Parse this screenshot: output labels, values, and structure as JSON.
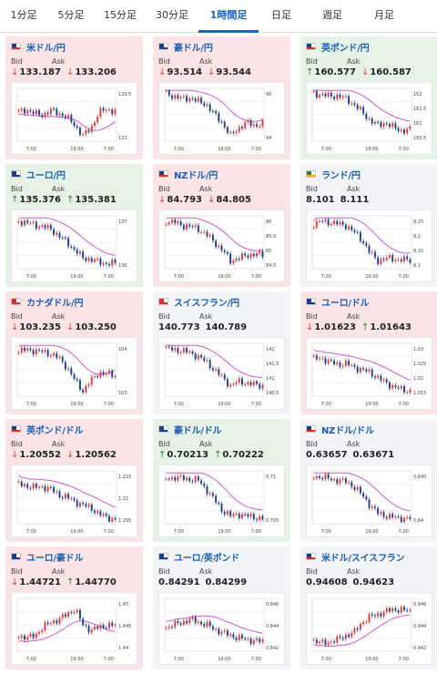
{
  "tabs": [
    {
      "label": "1分足",
      "active": false
    },
    {
      "label": "5分足",
      "active": false
    },
    {
      "label": "15分足",
      "active": false
    },
    {
      "label": "30分足",
      "active": false
    },
    {
      "label": "1時間足",
      "active": true
    },
    {
      "label": "日足",
      "active": false
    },
    {
      "label": "週足",
      "active": false
    },
    {
      "label": "月足",
      "active": false
    }
  ],
  "labels": {
    "bid": "Bid",
    "ask": "Ask"
  },
  "colors": {
    "accent": "#1565c0",
    "up_arrow": "#2e7d32",
    "down_arrow": "#e53935",
    "card_down_bg": "#fbe4e6",
    "card_up_bg": "#e6f2e6",
    "card_flat_bg": "#f2f4f7"
  },
  "cards": [
    {
      "pair": "米ドル/円",
      "flag": "us",
      "tone": "down",
      "bid": "133.187",
      "ask": "133.206",
      "bid_dir": "down",
      "ask_dir": "down",
      "chart_data": {
        "type": "candlestick",
        "x_ticks": [
          "7:00",
          "19:00",
          "7:00"
        ],
        "y_ticks": [
          "133.5",
          "133"
        ],
        "trend": [
          0.55,
          0.6,
          0.52,
          0.5,
          0.58,
          0.53,
          0.45,
          0.3,
          0.1,
          0.25,
          0.55,
          0.6,
          0.57
        ]
      }
    },
    {
      "pair": "豪ドル/円",
      "flag": "au",
      "tone": "down",
      "bid": "93.514",
      "ask": "93.544",
      "bid_dir": "down",
      "ask_dir": "down",
      "chart_data": {
        "type": "candlestick",
        "x_ticks": [
          "7:00",
          "19:00",
          "7:00"
        ],
        "y_ticks": [
          "95",
          "94"
        ],
        "trend": [
          0.9,
          0.85,
          0.8,
          0.82,
          0.75,
          0.7,
          0.5,
          0.35,
          0.1,
          0.25,
          0.35,
          0.3,
          0.33
        ]
      }
    },
    {
      "pair": "英ポンド/円",
      "flag": "gb",
      "tone": "up",
      "bid": "160.577",
      "ask": "160.587",
      "bid_dir": "up",
      "ask_dir": "down",
      "chart_data": {
        "type": "candlestick",
        "x_ticks": [
          "7:00",
          "19:00",
          "7:00"
        ],
        "y_ticks": [
          "162",
          "161.5",
          "161",
          "160.5"
        ],
        "trend": [
          0.9,
          0.88,
          0.85,
          0.86,
          0.8,
          0.7,
          0.55,
          0.4,
          0.3,
          0.35,
          0.25,
          0.2,
          0.22
        ]
      }
    },
    {
      "pair": "ユーロ/円",
      "flag": "eu",
      "tone": "up",
      "bid": "135.376",
      "ask": "135.381",
      "bid_dir": "up",
      "ask_dir": "up",
      "chart_data": {
        "type": "candlestick",
        "x_ticks": [
          "7:00",
          "19:00",
          "7:00"
        ],
        "y_ticks": [
          "137",
          "136"
        ],
        "trend": [
          0.9,
          0.87,
          0.83,
          0.8,
          0.75,
          0.62,
          0.5,
          0.35,
          0.2,
          0.18,
          0.12,
          0.1,
          0.1
        ]
      }
    },
    {
      "pair": "NZドル/円",
      "flag": "nz",
      "tone": "down",
      "bid": "84.793",
      "ask": "84.805",
      "bid_dir": "down",
      "ask_dir": "down",
      "chart_data": {
        "type": "candlestick",
        "x_ticks": [
          "7:00",
          "19:00",
          "7:00"
        ],
        "y_ticks": [
          "86",
          "85.5",
          "85",
          "84.5"
        ],
        "trend": [
          0.9,
          0.88,
          0.82,
          0.8,
          0.75,
          0.65,
          0.5,
          0.35,
          0.15,
          0.2,
          0.25,
          0.28,
          0.26
        ]
      }
    },
    {
      "pair": "ランド/円",
      "flag": "za",
      "tone": "flat",
      "bid": "8.101",
      "ask": "8.111",
      "bid_dir": "none",
      "ask_dir": "none",
      "chart_data": {
        "type": "candlestick",
        "x_ticks": [
          "7:00",
          "19:00",
          "7:00"
        ],
        "y_ticks": [
          "8.25",
          "8.2",
          "8.15",
          "8.1"
        ],
        "trend": [
          0.85,
          0.9,
          0.88,
          0.85,
          0.82,
          0.7,
          0.55,
          0.3,
          0.15,
          0.2,
          0.18,
          0.17,
          0.16
        ]
      }
    },
    {
      "pair": "カナダドル/円",
      "flag": "ca",
      "tone": "down",
      "bid": "103.235",
      "ask": "103.250",
      "bid_dir": "down",
      "ask_dir": "down",
      "chart_data": {
        "type": "candlestick",
        "x_ticks": [
          "7:00",
          "19:00",
          "7:00"
        ],
        "y_ticks": [
          "104",
          "103"
        ],
        "trend": [
          0.85,
          0.88,
          0.86,
          0.84,
          0.8,
          0.72,
          0.55,
          0.3,
          0.1,
          0.3,
          0.45,
          0.42,
          0.4
        ]
      }
    },
    {
      "pair": "スイスフラン/円",
      "flag": "ch",
      "tone": "flat",
      "bid": "140.773",
      "ask": "140.789",
      "bid_dir": "none",
      "ask_dir": "none",
      "chart_data": {
        "type": "candlestick",
        "x_ticks": [
          "7:00",
          "19:00",
          "7:00"
        ],
        "y_ticks": [
          "142",
          "141.5",
          "141",
          "140.5"
        ],
        "trend": [
          0.9,
          0.88,
          0.86,
          0.82,
          0.75,
          0.65,
          0.5,
          0.35,
          0.2,
          0.28,
          0.25,
          0.22,
          0.2
        ]
      }
    },
    {
      "pair": "ユーロ/ドル",
      "flag": "eu",
      "tone": "down",
      "bid": "1.01623",
      "ask": "1.01643",
      "bid_dir": "down",
      "ask_dir": "up",
      "chart_data": {
        "type": "candlestick",
        "x_ticks": [
          "7:00",
          "19:00",
          "7:00"
        ],
        "y_ticks": [
          "1.03",
          "1.025",
          "1.02",
          "1.015"
        ],
        "trend": [
          0.7,
          0.72,
          0.65,
          0.6,
          0.62,
          0.55,
          0.5,
          0.45,
          0.35,
          0.25,
          0.18,
          0.12,
          0.1
        ]
      }
    },
    {
      "pair": "英ポンド/ドル",
      "flag": "gb",
      "tone": "down",
      "bid": "1.20552",
      "ask": "1.20562",
      "bid_dir": "down",
      "ask_dir": "down",
      "chart_data": {
        "type": "candlestick",
        "x_ticks": [
          "7:00",
          "19:00",
          "7:00"
        ],
        "y_ticks": [
          "1.215",
          "1.21",
          "1.205"
        ],
        "trend": [
          0.75,
          0.72,
          0.68,
          0.7,
          0.65,
          0.55,
          0.5,
          0.42,
          0.35,
          0.3,
          0.18,
          0.12,
          0.08
        ]
      }
    },
    {
      "pair": "豪ドル/ドル",
      "flag": "au",
      "tone": "up",
      "bid": "0.70213",
      "ask": "0.70222",
      "bid_dir": "up",
      "ask_dir": "up",
      "chart_data": {
        "type": "candlestick",
        "x_ticks": [
          "7:00",
          "19:00",
          "7:00"
        ],
        "y_ticks": [
          "0.71",
          "0.705"
        ],
        "trend": [
          0.85,
          0.88,
          0.86,
          0.84,
          0.82,
          0.65,
          0.45,
          0.25,
          0.15,
          0.18,
          0.15,
          0.12,
          0.1
        ]
      }
    },
    {
      "pair": "NZドル/ドル",
      "flag": "nz",
      "tone": "flat",
      "bid": "0.63657",
      "ask": "0.63671",
      "bid_dir": "none",
      "ask_dir": "none",
      "chart_data": {
        "type": "candlestick",
        "x_ticks": [
          "7:00",
          "19:00",
          "7:00"
        ],
        "y_ticks": [
          "0.645",
          "0.64"
        ],
        "trend": [
          0.9,
          0.88,
          0.85,
          0.82,
          0.8,
          0.7,
          0.55,
          0.35,
          0.2,
          0.15,
          0.12,
          0.1,
          0.1
        ]
      }
    },
    {
      "pair": "ユーロ/豪ドル",
      "flag": "eu",
      "tone": "down",
      "bid": "1.44721",
      "ask": "1.44770",
      "bid_dir": "down",
      "ask_dir": "up",
      "chart_data": {
        "type": "candlestick",
        "x_ticks": [
          "7:00",
          "19:00",
          "7:00"
        ],
        "y_ticks": [
          "1.45",
          "1.445",
          "1.44"
        ],
        "trend": [
          0.3,
          0.25,
          0.3,
          0.45,
          0.55,
          0.6,
          0.7,
          0.8,
          0.5,
          0.4,
          0.45,
          0.5,
          0.48
        ]
      }
    },
    {
      "pair": "ユーロ/英ポンド",
      "flag": "eu",
      "tone": "flat",
      "bid": "0.84291",
      "ask": "0.84299",
      "bid_dir": "none",
      "ask_dir": "none",
      "chart_data": {
        "type": "candlestick",
        "x_ticks": [
          "7:00",
          "19:00",
          "7:00"
        ],
        "y_ticks": [
          "0.846",
          "0.844",
          "0.842"
        ],
        "trend": [
          0.45,
          0.5,
          0.55,
          0.6,
          0.55,
          0.5,
          0.42,
          0.35,
          0.3,
          0.25,
          0.22,
          0.2,
          0.18
        ]
      }
    },
    {
      "pair": "米ドル/スイスフラン",
      "flag": "us",
      "tone": "flat",
      "bid": "0.94608",
      "ask": "0.94623",
      "bid_dir": "none",
      "ask_dir": "none",
      "chart_data": {
        "type": "candlestick",
        "x_ticks": [
          "7:00",
          "19:00",
          "7:00"
        ],
        "y_ticks": [
          "0.946",
          "0.944",
          "0.942"
        ],
        "trend": [
          0.2,
          0.15,
          0.18,
          0.22,
          0.3,
          0.35,
          0.55,
          0.65,
          0.7,
          0.75,
          0.8,
          0.78,
          0.76
        ]
      }
    }
  ]
}
